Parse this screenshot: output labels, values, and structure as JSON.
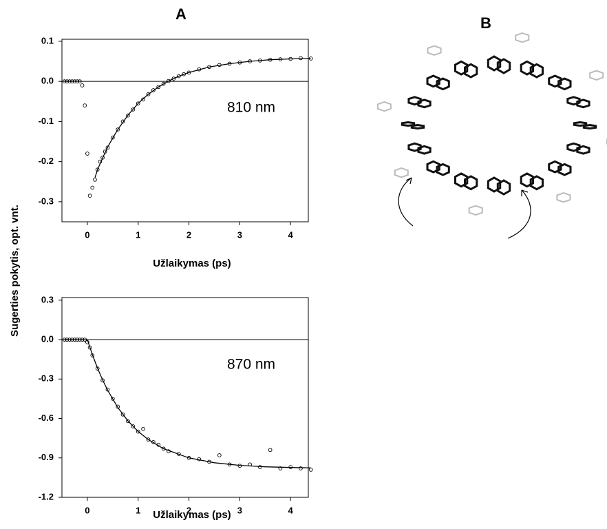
{
  "figure": {
    "panel_a": "A",
    "panel_b": "B",
    "ylabel": "Sugerties pokytis, opt. vnt."
  },
  "chart_data": [
    {
      "type": "scatter",
      "annotation": "810 nm",
      "xlabel": "Užlaikymas (ps)",
      "xlim": [
        -0.5,
        4.35
      ],
      "xticks": [
        0,
        1,
        2,
        3,
        4
      ],
      "ylim": [
        -0.35,
        0.105
      ],
      "yticks": [
        0.1,
        {
          "value": 0,
          "label": "0.0"
        },
        -0.1,
        -0.2,
        -0.3
      ],
      "hline": 0,
      "series": [
        {
          "mode": "markers",
          "color": "#000000",
          "x": [
            -0.45,
            -0.4,
            -0.35,
            -0.3,
            -0.25,
            -0.2,
            -0.15,
            -0.1,
            -0.05,
            0.0,
            0.05,
            0.1,
            0.15,
            0.2,
            0.25,
            0.3,
            0.35,
            0.4,
            0.5,
            0.6,
            0.7,
            0.8,
            0.9,
            1.0,
            1.1,
            1.2,
            1.3,
            1.4,
            1.5,
            1.6,
            1.7,
            1.8,
            1.9,
            2.0,
            2.2,
            2.4,
            2.6,
            2.8,
            3.0,
            3.2,
            3.4,
            3.6,
            3.8,
            4.0,
            4.2,
            4.4
          ],
          "values": [
            0.0,
            0.0,
            0.0,
            0.0,
            0.0,
            0.0,
            0.0,
            -0.01,
            -0.06,
            -0.18,
            -0.285,
            -0.265,
            -0.245,
            -0.22,
            -0.2,
            -0.19,
            -0.175,
            -0.165,
            -0.14,
            -0.12,
            -0.1,
            -0.085,
            -0.07,
            -0.055,
            -0.045,
            -0.032,
            -0.022,
            -0.014,
            -0.006,
            0.001,
            0.007,
            0.013,
            0.018,
            0.022,
            0.03,
            0.036,
            0.041,
            0.044,
            0.047,
            0.05,
            0.052,
            0.054,
            0.055,
            0.056,
            0.058,
            0.057
          ]
        },
        {
          "mode": "line",
          "color": "#000000",
          "x": [
            0.15,
            0.2,
            0.3,
            0.4,
            0.5,
            0.6,
            0.8,
            1.0,
            1.2,
            1.4,
            1.6,
            1.8,
            2.0,
            2.4,
            2.8,
            3.2,
            3.6,
            4.0,
            4.4
          ],
          "values": [
            -0.24,
            -0.22,
            -0.191,
            -0.164,
            -0.141,
            -0.12,
            -0.084,
            -0.055,
            -0.032,
            -0.014,
            0.001,
            0.013,
            0.022,
            0.036,
            0.044,
            0.05,
            0.054,
            0.056,
            0.057
          ]
        }
      ]
    },
    {
      "type": "scatter",
      "annotation": "870 nm",
      "xlabel": "Užlaikymas (ps)",
      "xlim": [
        -0.5,
        4.35
      ],
      "xticks": [
        0,
        1,
        2,
        3,
        4
      ],
      "ylim": [
        -1.2,
        0.32
      ],
      "yticks": [
        0.3,
        {
          "value": 0,
          "label": "0.0"
        },
        -0.3,
        -0.6,
        -0.9,
        -1.2
      ],
      "hline": 0,
      "series": [
        {
          "mode": "markers",
          "color": "#000000",
          "x": [
            -0.45,
            -0.4,
            -0.35,
            -0.3,
            -0.25,
            -0.2,
            -0.15,
            -0.1,
            -0.05,
            0.0,
            0.05,
            0.1,
            0.2,
            0.3,
            0.4,
            0.5,
            0.6,
            0.7,
            0.8,
            0.9,
            1.0,
            1.1,
            1.2,
            1.3,
            1.4,
            1.5,
            1.6,
            1.8,
            2.0,
            2.2,
            2.4,
            2.6,
            2.8,
            3.0,
            3.2,
            3.4,
            3.6,
            3.8,
            4.0,
            4.2,
            4.4
          ],
          "values": [
            0.0,
            0.0,
            0.0,
            0.0,
            0.0,
            0.0,
            0.0,
            0.0,
            0.0,
            -0.02,
            -0.06,
            -0.12,
            -0.22,
            -0.31,
            -0.38,
            -0.45,
            -0.51,
            -0.57,
            -0.62,
            -0.66,
            -0.7,
            -0.68,
            -0.76,
            -0.78,
            -0.8,
            -0.83,
            -0.85,
            -0.87,
            -0.9,
            -0.91,
            -0.93,
            -0.88,
            -0.95,
            -0.96,
            -0.95,
            -0.97,
            -0.84,
            -0.98,
            -0.97,
            -0.98,
            -0.99
          ]
        },
        {
          "mode": "line",
          "color": "#000000",
          "x": [
            -0.5,
            0.0,
            0.1,
            0.2,
            0.3,
            0.4,
            0.6,
            0.8,
            1.0,
            1.2,
            1.5,
            2.0,
            2.5,
            3.0,
            3.5,
            4.0,
            4.4
          ],
          "values": [
            0.0,
            0.0,
            -0.115,
            -0.217,
            -0.307,
            -0.385,
            -0.517,
            -0.619,
            -0.699,
            -0.761,
            -0.83,
            -0.9,
            -0.937,
            -0.957,
            -0.968,
            -0.973,
            -0.976
          ]
        }
      ]
    }
  ]
}
